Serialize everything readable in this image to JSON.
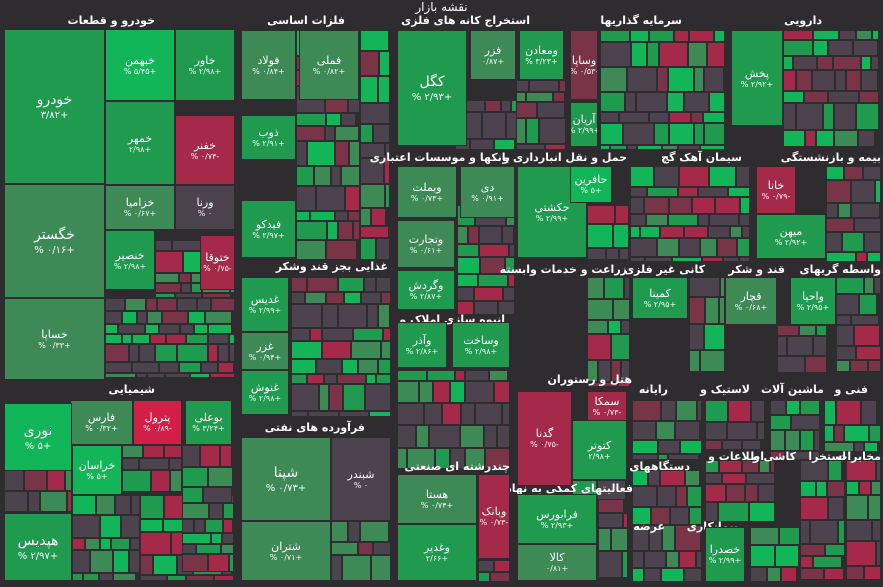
{
  "title": "نقشه بازار",
  "colors": {
    "background": "#2e2c2e",
    "neutral": "#4d434f",
    "up_light": "#3d8a56",
    "up_mid": "#1f9a4f",
    "up_strong": "#12b659",
    "down_light": "#7a3447",
    "down_mid": "#a52a49",
    "down_strong": "#d11f48"
  },
  "sectors": [
    {
      "name": "خودرو و قطعات"
    },
    {
      "name": "فلزات اساسی"
    },
    {
      "name": "استخراج کانه های فلزی"
    },
    {
      "name": "سرمایه گذاریها"
    },
    {
      "name": "دارویی"
    },
    {
      "name": "بانکها و موسسات اعتباری"
    },
    {
      "name": "حمل و نقل انبارداری و"
    },
    {
      "name": "سیمان آهک گچ"
    },
    {
      "name": "بیمه و بازنشستگی"
    },
    {
      "name": "غذایی بجز قند وشکر"
    },
    {
      "name": "زراعت و خدمات وابسته"
    },
    {
      "name": "کانی غیر فلزی"
    },
    {
      "name": "قند و شکر"
    },
    {
      "name": "واسطه گریهای"
    },
    {
      "name": "انبوه سازی املاک و"
    },
    {
      "name": "شیمیایی"
    },
    {
      "name": "هتل و رستوران"
    },
    {
      "name": "رایانه"
    },
    {
      "name": "لاستیک و"
    },
    {
      "name": "ماشین آلات"
    },
    {
      "name": "فنی و"
    },
    {
      "name": "فرآورده های نفتی"
    },
    {
      "name": "اطلاعات و"
    },
    {
      "name": "کاشی و"
    },
    {
      "name": "مخابرات"
    },
    {
      "name": "استخرا"
    },
    {
      "name": "دستگاههای"
    },
    {
      "name": "چندرشته ای صنعتی"
    },
    {
      "name": "فعالیتهای کمکی به نهاد"
    },
    {
      "name": "عرضه"
    },
    {
      "name": "پیمانکاری"
    }
  ],
  "chart_data": {
    "type": "heatmap",
    "title": "نقشه بازار",
    "unit": "%",
    "stocks": [
      {
        "name": "خودرو",
        "change": "+3.82",
        "label": "+۳/۸۲",
        "sector": "خودرو و قطعات"
      },
      {
        "name": "خبهمن",
        "change": "+5.45",
        "label": "+۵/۴۵ %",
        "sector": "خودرو و قطعات"
      },
      {
        "name": "خاور",
        "change": "+2.98",
        "label": "+۲/۹۸ %",
        "sector": "خودرو و قطعات"
      },
      {
        "name": "خمهر",
        "change": "+2.98",
        "label": "+۲/۹۸",
        "sector": "خودرو و قطعات"
      },
      {
        "name": "خفنر",
        "change": "-0.74",
        "label": "-۰/۷۴ %",
        "sector": "خودرو و قطعات"
      },
      {
        "name": "خگستر",
        "change": "+0.16",
        "label": "+۰/۱۶ %",
        "sector": "خودرو و قطعات"
      },
      {
        "name": "خزامیا",
        "change": "+0.67",
        "label": "+۰/۶۷ %",
        "sector": "خودرو و قطعات"
      },
      {
        "name": "ورنا",
        "change": "0",
        "label": "۰ %",
        "sector": "خودرو و قطعات"
      },
      {
        "name": "خنصیر",
        "change": "+2.98",
        "label": "+۲/۹۸ %",
        "sector": "خودرو و قطعات"
      },
      {
        "name": "ختوقا",
        "change": "-0.75",
        "label": "-۰/۷۵ %",
        "sector": "خودرو و قطعات"
      },
      {
        "name": "خساپا",
        "change": "+0.33",
        "label": "+۰/۳۳ %",
        "sector": "خودرو و قطعات"
      },
      {
        "name": "فولاد",
        "change": "+0.84",
        "label": "+۰/۸۴ %",
        "sector": "فلزات اساسی"
      },
      {
        "name": "فملی",
        "change": "+0.82",
        "label": "+۰/۸۲ %",
        "sector": "فلزات اساسی"
      },
      {
        "name": "ذوب",
        "change": "+2.91",
        "label": "+۲/۹۱ %",
        "sector": "فلزات اساسی"
      },
      {
        "name": "فیدکو",
        "change": "+2.97",
        "label": "+۲/۹۷ %",
        "sector": "فلزات اساسی"
      },
      {
        "name": "کگل",
        "change": "+2.93",
        "label": "+۲/۹۳ %",
        "sector": "استخراج کانه های فلزی"
      },
      {
        "name": "فزر",
        "change": "+0.87",
        "label": "+۰/۸۷",
        "sector": "استخراج کانه های فلزی"
      },
      {
        "name": "ومعادن",
        "change": "+3.23",
        "label": "+۳/۲۳ %",
        "sector": "استخراج کانه های فلزی"
      },
      {
        "name": "وساپا",
        "change": "-0.53",
        "label": "-۰/۵۳ %",
        "sector": "سرمایه گذاریها"
      },
      {
        "name": "آریان",
        "change": "+2.99",
        "label": "+۲/۹۹ %",
        "sector": "سرمایه گذاریها"
      },
      {
        "name": "پخش",
        "change": "+2.92",
        "label": "+۲/۹۲ %",
        "sector": "دارویی"
      },
      {
        "name": "وبملت",
        "change": "+0.73",
        "label": "+۰/۷۳ %",
        "sector": "بانکها و موسسات اعتباری"
      },
      {
        "name": "دی",
        "change": "+0.91",
        "label": "+۰/۹۱ %",
        "sector": "بانکها و موسسات اعتباری"
      },
      {
        "name": "وتجارت",
        "change": "+0.61",
        "label": "+۰/۶۱ %",
        "sector": "بانکها و موسسات اعتباری"
      },
      {
        "name": "وگردش",
        "change": "+2.87",
        "label": "+۲/۸۷ %",
        "sector": "بانکها و موسسات اعتباری"
      },
      {
        "name": "حکشتی",
        "change": "+2.99",
        "label": "+۲/۹۹ %",
        "sector": "حمل و نقل انبارداری و"
      },
      {
        "name": "حافرین",
        "change": "+5",
        "label": "+۵ %",
        "sector": "حمل و نقل انبارداری و"
      },
      {
        "name": "خانا",
        "change": "-0.79",
        "label": "-۰/۷۹ %",
        "sector": "بیمه و بازنشستگی"
      },
      {
        "name": "میهن",
        "change": "+2.92",
        "label": "+۲/۹۲ %",
        "sector": "بیمه و بازنشستگی"
      },
      {
        "name": "غدیس",
        "change": "+2.99",
        "label": "+۲/۹۹ %",
        "sector": "غذایی بجز قند وشکر"
      },
      {
        "name": "غزر",
        "change": "+0.94",
        "label": "+۰/۹۴ %",
        "sector": "غذایی بجز قند وشکر"
      },
      {
        "name": "غنوش",
        "change": "+2.98",
        "label": "+۲/۹۸ %",
        "sector": "غذایی بجز قند وشکر"
      },
      {
        "name": "کمینا",
        "change": "+2.95",
        "label": "+۲/۹۵ %",
        "sector": "کانی غیر فلزی"
      },
      {
        "name": "قچار",
        "change": "+0.68",
        "label": "+۰/۶۸ %",
        "sector": "قند و شکر"
      },
      {
        "name": "واحیا",
        "change": "+2.95",
        "label": "+۲/۹۵ %",
        "sector": "واسطه گریهای"
      },
      {
        "name": "وآذر",
        "change": "+2.86",
        "label": "+۲/۸۶ %",
        "sector": "انبوه سازی املاک و"
      },
      {
        "name": "وساخت",
        "change": "+2.98",
        "label": "+۲/۹۸ %",
        "sector": "انبوه سازی املاک و"
      },
      {
        "name": "فارس",
        "change": "+0.32",
        "label": "+۰/۳۲ %",
        "sector": "شیمیایی"
      },
      {
        "name": "پترول",
        "change": "-0.89",
        "label": "-۰/۸۹ %",
        "sector": "شیمیایی"
      },
      {
        "name": "بوعلی",
        "change": "+3.24",
        "label": "+۳/۲۴ %",
        "sector": "شیمیایی"
      },
      {
        "name": "نوری",
        "change": "+5",
        "label": "+۵ %",
        "sector": "شیمیایی"
      },
      {
        "name": "خراسان",
        "change": "+5",
        "label": "+۵ %",
        "sector": "شیمیایی"
      },
      {
        "name": "هپدیس",
        "change": "+2.97",
        "label": "+۲/۹۷ %",
        "sector": "شیمیایی"
      },
      {
        "name": "گدنا",
        "change": "-0.75",
        "label": "-۰/۷۵ %",
        "sector": "هتل و رستوران"
      },
      {
        "name": "سمکا",
        "change": "-0.73",
        "label": "-۰/۷۳ %",
        "sector": "هتل و رستوران"
      },
      {
        "name": "کتوتر",
        "change": "+2.98",
        "label": "+۲/۹۸",
        "sector": "هتل و رستوران"
      },
      {
        "name": "شپنا",
        "change": "+0.73",
        "label": "+۰/۷۳ %",
        "sector": "فرآورده های نفتی"
      },
      {
        "name": "شبندر",
        "change": "0",
        "label": "۰ %",
        "sector": "فرآورده های نفتی"
      },
      {
        "name": "شتران",
        "change": "+0.71",
        "label": "+۰/۷۱ %",
        "sector": "فرآورده های نفتی"
      },
      {
        "name": "هستا",
        "change": "+0.74",
        "label": "+۰/۷۴ %",
        "sector": "چندرشته ای صنعتی"
      },
      {
        "name": "وبانک",
        "change": "-0.73",
        "label": "-۰/۷۳ %",
        "sector": "چندرشته ای صنعتی"
      },
      {
        "name": "وغدیر",
        "change": "+2.66",
        "label": "+۲/۶۶",
        "sector": "چندرشته ای صنعتی"
      },
      {
        "name": "فرابورس",
        "change": "+2.93",
        "label": "+۲/۹۳ %",
        "sector": "فعالیتهای کمکی به نهاد"
      },
      {
        "name": "کالا",
        "change": "+0.81",
        "label": "+۰/۸۱",
        "sector": "فعالیتهای کمکی به نهاد"
      },
      {
        "name": "خصدرا",
        "change": "+2.99",
        "label": "+۲/۹۹ %",
        "sector": "پیمانکاری"
      }
    ]
  }
}
